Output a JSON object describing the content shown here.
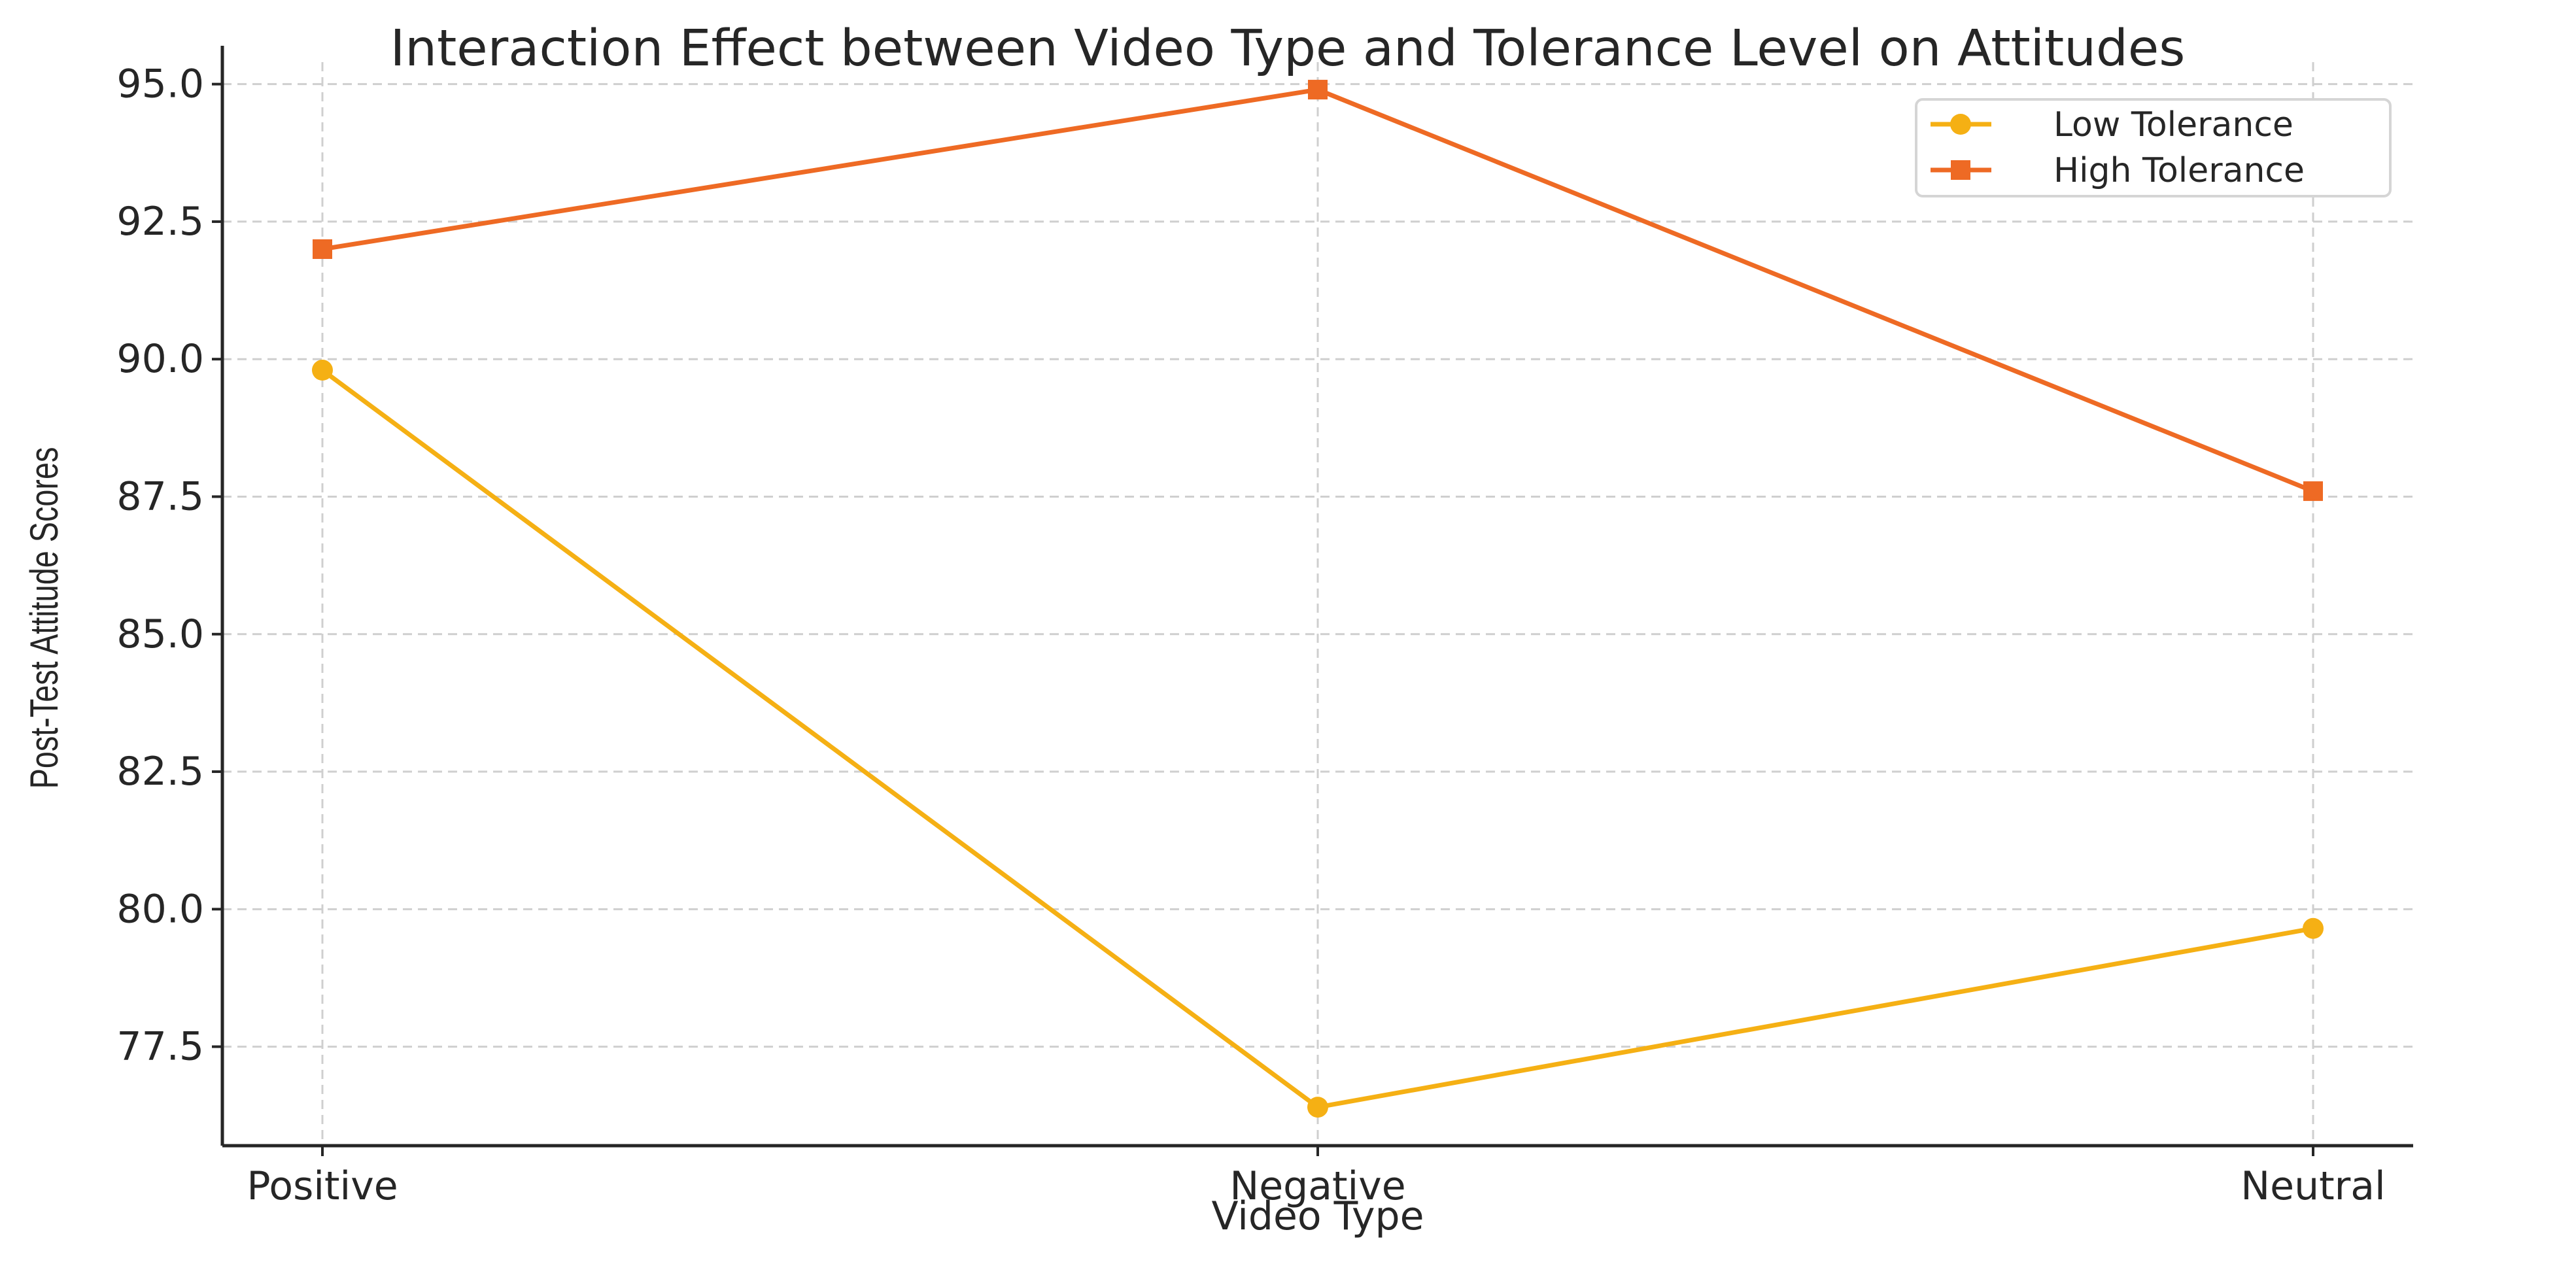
{
  "chart_data": {
    "type": "line",
    "title": "Interaction Effect between Video Type and Tolerance Level on Attitudes",
    "xlabel": "Video Type",
    "ylabel": "Post-Test Attitude Scores",
    "categories": [
      "Positive",
      "Negative",
      "Neutral"
    ],
    "series": [
      {
        "name": "Low Tolerance",
        "values": [
          89.8,
          76.4,
          79.65
        ],
        "color": "#F5B014",
        "marker": "circle"
      },
      {
        "name": "High Tolerance",
        "values": [
          92.0,
          94.9,
          87.6
        ],
        "color": "#EE6A24",
        "marker": "square"
      }
    ],
    "ylim": [
      75.7,
      95.4
    ],
    "yticks": [
      "77.5",
      "80.0",
      "82.5",
      "85.0",
      "87.5",
      "90.0",
      "92.5",
      "95.0"
    ],
    "grid": true,
    "legend_position": "top-right"
  }
}
